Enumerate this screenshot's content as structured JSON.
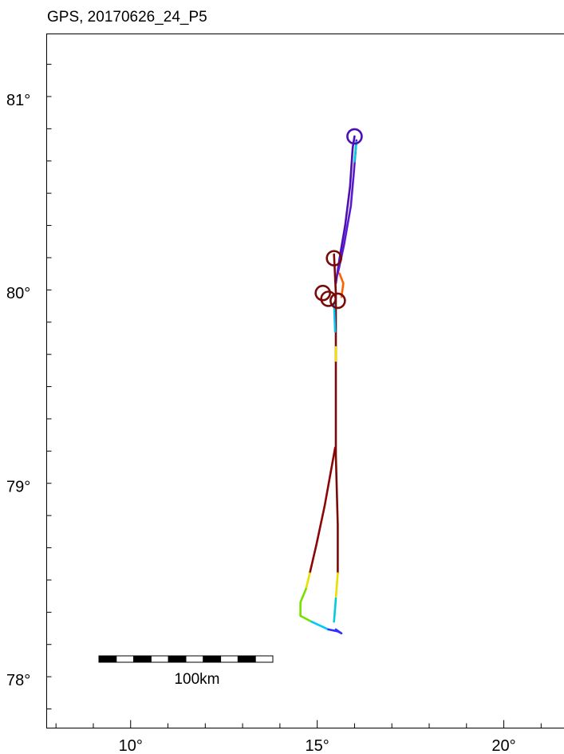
{
  "title": "GPS, 20170626_24_P5",
  "axes": {
    "lat_ticks": [
      {
        "value": 78,
        "label": "78°"
      },
      {
        "value": 79,
        "label": "79°"
      },
      {
        "value": 80,
        "label": "80°"
      },
      {
        "value": 81,
        "label": "81°"
      }
    ],
    "lon_ticks": [
      {
        "value": 10,
        "label": "10°"
      },
      {
        "value": 15,
        "label": "15°"
      },
      {
        "value": 20,
        "label": "20°"
      }
    ],
    "lat_range": [
      77.75,
      81.34
    ],
    "lon_range": [
      7.75,
      22.5
    ],
    "minor_lat_step": 0.1667,
    "minor_lon_step": 1
  },
  "scale_bar": {
    "label": "100km",
    "length_km": 100,
    "segments": 10
  },
  "track": {
    "colormap": "rainbow (violet→blue→cyan→green→yellow→red→dark red)",
    "lines": [
      {
        "color": "#4b0fb4",
        "points": [
          [
            16.0,
            80.81
          ],
          [
            15.95,
            80.75
          ],
          [
            15.88,
            80.55
          ],
          [
            15.75,
            80.35
          ],
          [
            15.6,
            80.18
          ],
          [
            15.5,
            80.05
          ]
        ]
      },
      {
        "color": "#5a1ad0",
        "points": [
          [
            16.05,
            80.79
          ],
          [
            15.98,
            80.62
          ],
          [
            15.9,
            80.45
          ],
          [
            15.72,
            80.25
          ],
          [
            15.55,
            80.1
          ]
        ]
      },
      {
        "color": "#00ccdd",
        "points": [
          [
            16.05,
            80.78
          ],
          [
            16.0,
            80.68
          ]
        ]
      },
      {
        "color": "#7a0a0a",
        "points": [
          [
            15.45,
            80.2
          ],
          [
            15.5,
            80.0
          ],
          [
            15.5,
            79.6
          ],
          [
            15.5,
            79.16
          ],
          [
            15.55,
            78.8
          ],
          [
            15.55,
            78.55
          ]
        ]
      },
      {
        "color": "#8c0505",
        "points": [
          [
            15.48,
            79.2
          ],
          [
            15.2,
            78.9
          ],
          [
            14.98,
            78.7
          ],
          [
            14.8,
            78.55
          ]
        ]
      },
      {
        "color": "#e8e000",
        "points": [
          [
            14.8,
            78.55
          ],
          [
            14.7,
            78.47
          ]
        ]
      },
      {
        "color": "#78e000",
        "points": [
          [
            14.7,
            78.47
          ],
          [
            14.55,
            78.4
          ],
          [
            14.55,
            78.33
          ],
          [
            14.85,
            78.3
          ]
        ]
      },
      {
        "color": "#00c8ff",
        "points": [
          [
            14.85,
            78.3
          ],
          [
            15.3,
            78.26
          ]
        ]
      },
      {
        "color": "#3030ff",
        "points": [
          [
            15.3,
            78.26
          ],
          [
            15.55,
            78.25
          ],
          [
            15.65,
            78.24
          ],
          [
            15.5,
            78.26
          ]
        ]
      },
      {
        "color": "#e8e000",
        "points": [
          [
            15.55,
            78.55
          ],
          [
            15.5,
            78.42
          ]
        ]
      },
      {
        "color": "#00ccdd",
        "points": [
          [
            15.5,
            78.42
          ],
          [
            15.45,
            78.3
          ]
        ]
      },
      {
        "color": "#f0e000",
        "points": [
          [
            15.5,
            79.72
          ],
          [
            15.5,
            79.65
          ]
        ]
      },
      {
        "color": "#00c8ff",
        "points": [
          [
            15.45,
            79.95
          ],
          [
            15.48,
            79.8
          ]
        ]
      },
      {
        "color": "#ff6000",
        "points": [
          [
            15.6,
            80.1
          ],
          [
            15.7,
            80.05
          ],
          [
            15.65,
            79.98
          ]
        ]
      }
    ],
    "loops": [
      {
        "color": "#7a0a0a",
        "lon": 15.15,
        "lat": 80.0
      },
      {
        "color": "#7a0a0a",
        "lon": 15.55,
        "lat": 79.96
      },
      {
        "color": "#7a0a0a",
        "lon": 15.3,
        "lat": 79.97
      },
      {
        "color": "#7a0a0a",
        "lon": 15.45,
        "lat": 80.18
      },
      {
        "color": "#4b0fb4",
        "lon": 16.0,
        "lat": 80.81
      }
    ]
  }
}
